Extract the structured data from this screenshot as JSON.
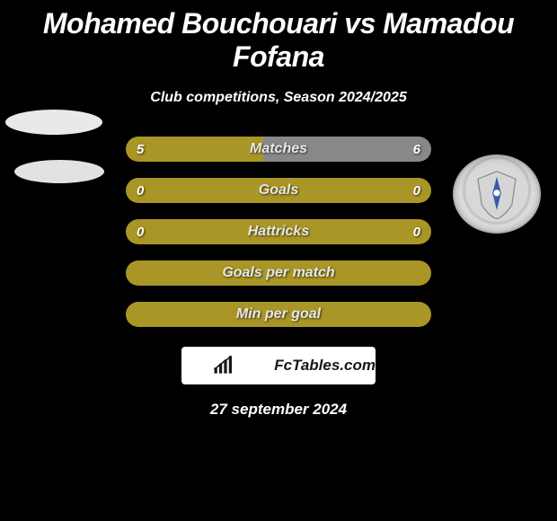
{
  "title": "Mohamed Bouchouari vs Mamadou Fofana",
  "subtitle": "Club competitions, Season 2024/2025",
  "datestamp": "27 september 2024",
  "colors": {
    "left": "#a99626",
    "right": "#888888",
    "empty": "#a99626",
    "text": "#ffffff",
    "background": "#000000"
  },
  "brand": {
    "text": "FcTables.com"
  },
  "rows": [
    {
      "label": "Matches",
      "left": "5",
      "right": "6",
      "leftPct": 45,
      "rightPct": 55,
      "show_values": true
    },
    {
      "label": "Goals",
      "left": "0",
      "right": "0",
      "leftPct": 100,
      "rightPct": 0,
      "show_values": true
    },
    {
      "label": "Hattricks",
      "left": "0",
      "right": "0",
      "leftPct": 100,
      "rightPct": 0,
      "show_values": true
    },
    {
      "label": "Goals per match",
      "left": "",
      "right": "",
      "leftPct": 100,
      "rightPct": 0,
      "show_values": false
    },
    {
      "label": "Min per goal",
      "left": "",
      "right": "",
      "leftPct": 100,
      "rightPct": 0,
      "show_values": false
    }
  ]
}
